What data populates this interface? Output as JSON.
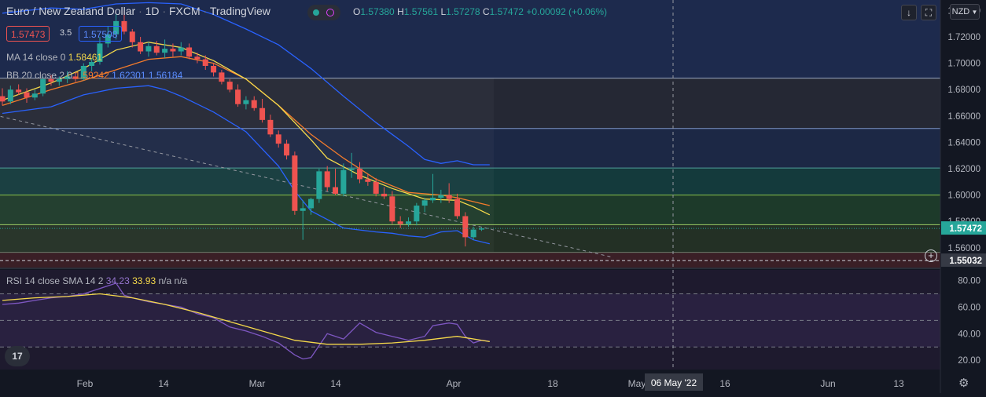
{
  "header": {
    "symbol_title": "Euro / New Zealand Dollar",
    "interval": "1D",
    "exchange": "FXCM",
    "platform": "TradingView",
    "ohlc": {
      "o_label": "O",
      "o_value": "1.57380",
      "h_label": "H",
      "h_value": "1.57561",
      "l_label": "L",
      "l_value": "1.57278",
      "c_label": "C",
      "c_value": "1.57472",
      "change": "+0.00092 (+0.06%)"
    },
    "bid": "1.57473",
    "spread": "3.5",
    "ask": "1.57508"
  },
  "toolbar": {
    "currency": "NZD",
    "download_icon": "download-arrow-icon",
    "fullscreen_icon": "fullscreen-icon"
  },
  "indicators": {
    "ma": {
      "label": "MA 14 close 0",
      "value": "1.58461"
    },
    "bb": {
      "label": "BB 20 close 2 0",
      "basis": "1.59242",
      "upper": "1.62301",
      "lower": "1.56184"
    },
    "rsi": {
      "label": "RSI 14 close SMA 14 2",
      "rsi_value": "34.23",
      "sma_value": "33.93",
      "extra1": "n/a",
      "extra2": "n/a"
    }
  },
  "price_axis": {
    "labels": [
      "1.74000",
      "1.72000",
      "1.70000",
      "1.68000",
      "1.66000",
      "1.64000",
      "1.62000",
      "1.60000",
      "1.58000",
      "1.56000"
    ],
    "current_price": "1.57472",
    "crosshair_price": "1.55032"
  },
  "rsi_axis": {
    "labels": [
      "80.00",
      "60.00",
      "40.00",
      "20.00"
    ]
  },
  "time_axis": {
    "labels": [
      "Feb",
      "14",
      "Mar",
      "14",
      "Apr",
      "18",
      "May",
      "16",
      "Jun",
      "13"
    ],
    "crosshair_date": "06 May '22"
  },
  "colors": {
    "up": "#26a69a",
    "down": "#ef5350",
    "ma": "#f5d94a",
    "bb_basis": "#f57c2b",
    "bb_bands": "#2962ff",
    "rsi": "#7e57c2",
    "rsi_sma": "#f5d94a",
    "background": "#131722"
  },
  "chart_data": {
    "type": "candlestick",
    "title": "Euro / New Zealand Dollar",
    "interval": "1D",
    "price_range": [
      1.545,
      1.748
    ],
    "rsi_range": [
      13,
      88
    ],
    "horizontal_levels": [
      1.6887,
      1.6505,
      1.6205,
      1.6,
      1.5775,
      1.5565
    ],
    "zone_fills": [
      {
        "from": 1.6887,
        "to": 1.748,
        "color": "#1d2a4d"
      },
      {
        "from": 1.6505,
        "to": 1.6887,
        "color": "#252834"
      },
      {
        "from": 1.6205,
        "to": 1.6505,
        "color": "#1c2845"
      },
      {
        "from": 1.6,
        "to": 1.6205,
        "color": "#143a3c"
      },
      {
        "from": 1.5775,
        "to": 1.6,
        "color": "#1d3a2a"
      },
      {
        "from": 1.5565,
        "to": 1.5775,
        "color": "#233025"
      },
      {
        "from": 1.545,
        "to": 1.5565,
        "color": "#3a1f26"
      }
    ],
    "candles": [
      {
        "o": 1.675,
        "h": 1.681,
        "l": 1.668,
        "c": 1.671
      },
      {
        "o": 1.671,
        "h": 1.683,
        "l": 1.669,
        "c": 1.68
      },
      {
        "o": 1.68,
        "h": 1.684,
        "l": 1.676,
        "c": 1.678
      },
      {
        "o": 1.678,
        "h": 1.681,
        "l": 1.67,
        "c": 1.674
      },
      {
        "o": 1.674,
        "h": 1.68,
        "l": 1.672,
        "c": 1.677
      },
      {
        "o": 1.677,
        "h": 1.69,
        "l": 1.675,
        "c": 1.688
      },
      {
        "o": 1.688,
        "h": 1.691,
        "l": 1.683,
        "c": 1.686
      },
      {
        "o": 1.686,
        "h": 1.69,
        "l": 1.683,
        "c": 1.688
      },
      {
        "o": 1.688,
        "h": 1.694,
        "l": 1.685,
        "c": 1.69
      },
      {
        "o": 1.69,
        "h": 1.693,
        "l": 1.686,
        "c": 1.688
      },
      {
        "o": 1.688,
        "h": 1.7,
        "l": 1.687,
        "c": 1.698
      },
      {
        "o": 1.698,
        "h": 1.704,
        "l": 1.694,
        "c": 1.701
      },
      {
        "o": 1.701,
        "h": 1.72,
        "l": 1.699,
        "c": 1.715
      },
      {
        "o": 1.715,
        "h": 1.728,
        "l": 1.712,
        "c": 1.722
      },
      {
        "o": 1.722,
        "h": 1.737,
        "l": 1.718,
        "c": 1.732
      },
      {
        "o": 1.732,
        "h": 1.74,
        "l": 1.722,
        "c": 1.724
      },
      {
        "o": 1.724,
        "h": 1.726,
        "l": 1.712,
        "c": 1.716
      },
      {
        "o": 1.716,
        "h": 1.72,
        "l": 1.707,
        "c": 1.709
      },
      {
        "o": 1.709,
        "h": 1.716,
        "l": 1.705,
        "c": 1.713
      },
      {
        "o": 1.713,
        "h": 1.717,
        "l": 1.706,
        "c": 1.708
      },
      {
        "o": 1.708,
        "h": 1.718,
        "l": 1.704,
        "c": 1.711
      },
      {
        "o": 1.711,
        "h": 1.715,
        "l": 1.705,
        "c": 1.709
      },
      {
        "o": 1.709,
        "h": 1.716,
        "l": 1.706,
        "c": 1.712
      },
      {
        "o": 1.712,
        "h": 1.715,
        "l": 1.703,
        "c": 1.705
      },
      {
        "o": 1.705,
        "h": 1.708,
        "l": 1.7,
        "c": 1.703
      },
      {
        "o": 1.703,
        "h": 1.706,
        "l": 1.695,
        "c": 1.698
      },
      {
        "o": 1.698,
        "h": 1.7,
        "l": 1.69,
        "c": 1.693
      },
      {
        "o": 1.693,
        "h": 1.695,
        "l": 1.684,
        "c": 1.686
      },
      {
        "o": 1.686,
        "h": 1.688,
        "l": 1.678,
        "c": 1.68
      },
      {
        "o": 1.68,
        "h": 1.684,
        "l": 1.667,
        "c": 1.669
      },
      {
        "o": 1.669,
        "h": 1.675,
        "l": 1.665,
        "c": 1.672
      },
      {
        "o": 1.672,
        "h": 1.675,
        "l": 1.664,
        "c": 1.666
      },
      {
        "o": 1.666,
        "h": 1.673,
        "l": 1.655,
        "c": 1.657
      },
      {
        "o": 1.657,
        "h": 1.661,
        "l": 1.644,
        "c": 1.646
      },
      {
        "o": 1.646,
        "h": 1.649,
        "l": 1.636,
        "c": 1.639
      },
      {
        "o": 1.639,
        "h": 1.642,
        "l": 1.627,
        "c": 1.63
      },
      {
        "o": 1.63,
        "h": 1.633,
        "l": 1.585,
        "c": 1.588
      },
      {
        "o": 1.588,
        "h": 1.596,
        "l": 1.566,
        "c": 1.59
      },
      {
        "o": 1.59,
        "h": 1.598,
        "l": 1.585,
        "c": 1.597
      },
      {
        "o": 1.597,
        "h": 1.62,
        "l": 1.594,
        "c": 1.618
      },
      {
        "o": 1.618,
        "h": 1.622,
        "l": 1.603,
        "c": 1.606
      },
      {
        "o": 1.606,
        "h": 1.62,
        "l": 1.6,
        "c": 1.601
      },
      {
        "o": 1.601,
        "h": 1.624,
        "l": 1.599,
        "c": 1.619
      },
      {
        "o": 1.619,
        "h": 1.632,
        "l": 1.613,
        "c": 1.62
      },
      {
        "o": 1.62,
        "h": 1.625,
        "l": 1.609,
        "c": 1.612
      },
      {
        "o": 1.612,
        "h": 1.616,
        "l": 1.607,
        "c": 1.61
      },
      {
        "o": 1.61,
        "h": 1.613,
        "l": 1.599,
        "c": 1.601
      },
      {
        "o": 1.601,
        "h": 1.606,
        "l": 1.597,
        "c": 1.599
      },
      {
        "o": 1.599,
        "h": 1.603,
        "l": 1.578,
        "c": 1.58
      },
      {
        "o": 1.58,
        "h": 1.584,
        "l": 1.575,
        "c": 1.578
      },
      {
        "o": 1.578,
        "h": 1.583,
        "l": 1.576,
        "c": 1.58
      },
      {
        "o": 1.58,
        "h": 1.594,
        "l": 1.577,
        "c": 1.592
      },
      {
        "o": 1.592,
        "h": 1.598,
        "l": 1.587,
        "c": 1.596
      },
      {
        "o": 1.596,
        "h": 1.616,
        "l": 1.594,
        "c": 1.598
      },
      {
        "o": 1.598,
        "h": 1.604,
        "l": 1.594,
        "c": 1.6
      },
      {
        "o": 1.6,
        "h": 1.609,
        "l": 1.594,
        "c": 1.597
      },
      {
        "o": 1.597,
        "h": 1.601,
        "l": 1.582,
        "c": 1.584
      },
      {
        "o": 1.584,
        "h": 1.587,
        "l": 1.561,
        "c": 1.568
      },
      {
        "o": 1.568,
        "h": 1.576,
        "l": 1.566,
        "c": 1.5738
      },
      {
        "o": 1.5738,
        "h": 1.5756,
        "l": 1.5728,
        "c": 1.5747
      }
    ],
    "bb_upper": [
      [
        0,
        1.738
      ],
      [
        6,
        1.742
      ],
      [
        10,
        1.741
      ],
      [
        14,
        1.745
      ],
      [
        18,
        1.746
      ],
      [
        22,
        1.745
      ],
      [
        26,
        1.737
      ],
      [
        30,
        1.726
      ],
      [
        34,
        1.714
      ],
      [
        38,
        1.696
      ],
      [
        42,
        1.675
      ],
      [
        46,
        1.655
      ],
      [
        48,
        1.646
      ],
      [
        50,
        1.637
      ],
      [
        52,
        1.627
      ],
      [
        54,
        1.624
      ],
      [
        56,
        1.626
      ],
      [
        58,
        1.623
      ],
      [
        60,
        1.623
      ]
    ],
    "bb_lower": [
      [
        0,
        1.662
      ],
      [
        6,
        1.667
      ],
      [
        10,
        1.676
      ],
      [
        14,
        1.681
      ],
      [
        18,
        1.683
      ],
      [
        20,
        1.68
      ],
      [
        22,
        1.675
      ],
      [
        26,
        1.663
      ],
      [
        30,
        1.648
      ],
      [
        34,
        1.622
      ],
      [
        36,
        1.603
      ],
      [
        38,
        1.588
      ],
      [
        42,
        1.575
      ],
      [
        46,
        1.572
      ],
      [
        48,
        1.571
      ],
      [
        50,
        1.569
      ],
      [
        52,
        1.568
      ],
      [
        54,
        1.572
      ],
      [
        56,
        1.573
      ],
      [
        58,
        1.566
      ],
      [
        60,
        1.563
      ]
    ],
    "bb_basis": [
      [
        0,
        1.668
      ],
      [
        6,
        1.68
      ],
      [
        10,
        1.687
      ],
      [
        14,
        1.695
      ],
      [
        18,
        1.703
      ],
      [
        22,
        1.705
      ],
      [
        26,
        1.7
      ],
      [
        30,
        1.688
      ],
      [
        34,
        1.668
      ],
      [
        38,
        1.646
      ],
      [
        42,
        1.628
      ],
      [
        46,
        1.612
      ],
      [
        50,
        1.602
      ],
      [
        54,
        1.6
      ],
      [
        56,
        1.598
      ],
      [
        58,
        1.595
      ],
      [
        60,
        1.592
      ]
    ],
    "ma_14": [
      [
        0,
        1.672
      ],
      [
        6,
        1.685
      ],
      [
        10,
        1.696
      ],
      [
        14,
        1.71
      ],
      [
        18,
        1.716
      ],
      [
        22,
        1.712
      ],
      [
        26,
        1.702
      ],
      [
        30,
        1.688
      ],
      [
        34,
        1.668
      ],
      [
        38,
        1.642
      ],
      [
        40,
        1.628
      ],
      [
        44,
        1.615
      ],
      [
        48,
        1.605
      ],
      [
        52,
        1.597
      ],
      [
        56,
        1.596
      ],
      [
        58,
        1.591
      ],
      [
        60,
        1.585
      ]
    ],
    "trendline": [
      [
        -4,
        1.665
      ],
      [
        75,
        1.553
      ]
    ],
    "rsi": [
      [
        0,
        62
      ],
      [
        2,
        63
      ],
      [
        4,
        65
      ],
      [
        6,
        67
      ],
      [
        8,
        68
      ],
      [
        10,
        70
      ],
      [
        12,
        74
      ],
      [
        14,
        78
      ],
      [
        15,
        69
      ],
      [
        16,
        67
      ],
      [
        18,
        64
      ],
      [
        20,
        62
      ],
      [
        22,
        60
      ],
      [
        24,
        55
      ],
      [
        26,
        52
      ],
      [
        28,
        45
      ],
      [
        30,
        42
      ],
      [
        32,
        38
      ],
      [
        34,
        33
      ],
      [
        36,
        24
      ],
      [
        37,
        21
      ],
      [
        38,
        22
      ],
      [
        40,
        40
      ],
      [
        42,
        36
      ],
      [
        44,
        48
      ],
      [
        46,
        41
      ],
      [
        48,
        38
      ],
      [
        50,
        35
      ],
      [
        52,
        38
      ],
      [
        53,
        46
      ],
      [
        55,
        48
      ],
      [
        56,
        47
      ],
      [
        57,
        38
      ],
      [
        58,
        33
      ],
      [
        59,
        35
      ],
      [
        60,
        34.2
      ]
    ],
    "rsi_sma": [
      [
        0,
        65
      ],
      [
        4,
        67
      ],
      [
        8,
        68
      ],
      [
        12,
        70
      ],
      [
        16,
        67
      ],
      [
        20,
        62
      ],
      [
        24,
        56
      ],
      [
        28,
        49
      ],
      [
        32,
        42
      ],
      [
        36,
        35
      ],
      [
        40,
        32
      ],
      [
        44,
        32
      ],
      [
        48,
        33
      ],
      [
        52,
        35
      ],
      [
        56,
        38
      ],
      [
        60,
        34
      ]
    ],
    "rsi_levels": [
      70,
      50,
      30
    ]
  }
}
